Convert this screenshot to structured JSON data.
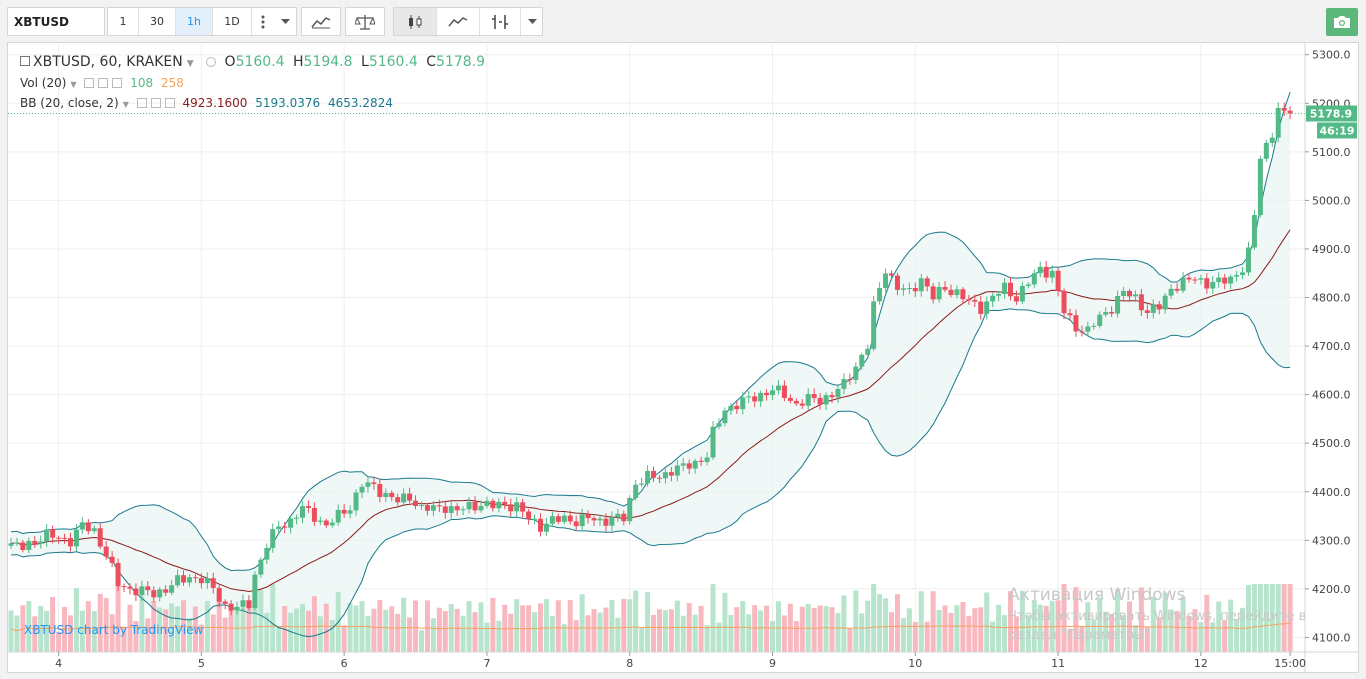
{
  "toolbar": {
    "symbol": "XBTUSD",
    "intervals": [
      "1",
      "30",
      "1h",
      "1D"
    ],
    "active_interval": "1h"
  },
  "legend": {
    "title": "XBTUSD, 60, KRAKEN",
    "o_label": "O",
    "o_value": "5160.4",
    "h_label": "H",
    "h_value": "5194.8",
    "l_label": "L",
    "l_value": "5160.4",
    "c_label": "C",
    "c_value": "5178.9",
    "vol_label": "Vol (20)",
    "vol_value": "108",
    "vol_ma_value": "258",
    "bb_label": "BB (20, close, 2)",
    "bb_basis": "4923.1600",
    "bb_upper": "5193.0376",
    "bb_lower": "4653.2824"
  },
  "price_tag": {
    "price": "5178.9",
    "countdown": "46:19"
  },
  "watermark": {
    "line1": "Активация Windows",
    "line2": "Чтобы активировать Windows, перейдите в",
    "line3": "раздел \"Параметры\"."
  },
  "attribution": "XBTUSD chart by TradingView",
  "colors": {
    "up": "#53b987",
    "down": "#eb4d5c",
    "band": "#1a7a8c",
    "basis": "#8b1a1a",
    "band_fill": "#e8f5f2",
    "vol_up": "#b7e4cd",
    "vol_down": "#f8b8bf",
    "vol_ma": "#f5a25d",
    "accent": "#2196f3"
  },
  "chart_data": {
    "type": "candlestick",
    "ylim": [
      4070,
      5320
    ],
    "y_ticks": [
      4100,
      4200,
      4300,
      4400,
      4500,
      4600,
      4700,
      4800,
      4900,
      5000,
      5100,
      5200,
      5300
    ],
    "y_tick_labels": [
      "4100.0",
      "4200.0",
      "4300.0",
      "4400.0",
      "4500.0",
      "4600.0",
      "4700.0",
      "4800.0",
      "4900.0",
      "5000.0",
      "5100.0",
      "5200.0",
      "5300.0"
    ],
    "x_ticks": [
      {
        "label": "4",
        "hour": 0
      },
      {
        "label": "5",
        "hour": 24
      },
      {
        "label": "6",
        "hour": 48
      },
      {
        "label": "7",
        "hour": 72
      },
      {
        "label": "8",
        "hour": 96
      },
      {
        "label": "9",
        "hour": 120
      },
      {
        "label": "10",
        "hour": 144
      },
      {
        "label": "11",
        "hour": 168
      },
      {
        "label": "12",
        "hour": 192
      },
      {
        "label": "15:00",
        "hour": 207
      }
    ],
    "x_range_hours": [
      -8.5,
      209.5
    ],
    "close_anchors": [
      [
        -8,
        4290
      ],
      [
        -6,
        4285
      ],
      [
        -4,
        4300
      ],
      [
        -2,
        4310
      ],
      [
        0,
        4305
      ],
      [
        2,
        4300
      ],
      [
        4,
        4330
      ],
      [
        6,
        4320
      ],
      [
        8,
        4270
      ],
      [
        10,
        4210
      ],
      [
        12,
        4200
      ],
      [
        14,
        4195
      ],
      [
        16,
        4190
      ],
      [
        18,
        4200
      ],
      [
        20,
        4215
      ],
      [
        22,
        4225
      ],
      [
        24,
        4220
      ],
      [
        26,
        4200
      ],
      [
        28,
        4165
      ],
      [
        30,
        4160
      ],
      [
        32,
        4170
      ],
      [
        33,
        4230
      ],
      [
        35,
        4290
      ],
      [
        37,
        4330
      ],
      [
        39,
        4340
      ],
      [
        41,
        4365
      ],
      [
        43,
        4350
      ],
      [
        45,
        4330
      ],
      [
        47,
        4350
      ],
      [
        49,
        4370
      ],
      [
        51,
        4415
      ],
      [
        53,
        4410
      ],
      [
        55,
        4395
      ],
      [
        57,
        4380
      ],
      [
        59,
        4390
      ],
      [
        61,
        4365
      ],
      [
        63,
        4365
      ],
      [
        65,
        4370
      ],
      [
        67,
        4360
      ],
      [
        69,
        4370
      ],
      [
        71,
        4375
      ],
      [
        73,
        4370
      ],
      [
        75,
        4375
      ],
      [
        77,
        4370
      ],
      [
        79,
        4345
      ],
      [
        81,
        4330
      ],
      [
        83,
        4340
      ],
      [
        85,
        4345
      ],
      [
        87,
        4340
      ],
      [
        89,
        4345
      ],
      [
        91,
        4340
      ],
      [
        93,
        4345
      ],
      [
        95,
        4345
      ],
      [
        97,
        4420
      ],
      [
        99,
        4430
      ],
      [
        101,
        4430
      ],
      [
        103,
        4445
      ],
      [
        105,
        4450
      ],
      [
        107,
        4460
      ],
      [
        109,
        4475
      ],
      [
        110,
        4520
      ],
      [
        112,
        4570
      ],
      [
        114,
        4580
      ],
      [
        116,
        4590
      ],
      [
        118,
        4600
      ],
      [
        120,
        4610
      ],
      [
        122,
        4600
      ],
      [
        124,
        4580
      ],
      [
        126,
        4590
      ],
      [
        128,
        4590
      ],
      [
        130,
        4600
      ],
      [
        132,
        4620
      ],
      [
        134,
        4660
      ],
      [
        136,
        4700
      ],
      [
        137,
        4780
      ],
      [
        139,
        4860
      ],
      [
        141,
        4820
      ],
      [
        143,
        4810
      ],
      [
        145,
        4840
      ],
      [
        147,
        4800
      ],
      [
        149,
        4820
      ],
      [
        151,
        4810
      ],
      [
        153,
        4790
      ],
      [
        155,
        4780
      ],
      [
        157,
        4800
      ],
      [
        159,
        4820
      ],
      [
        161,
        4800
      ],
      [
        163,
        4830
      ],
      [
        165,
        4860
      ],
      [
        167,
        4850
      ],
      [
        169,
        4770
      ],
      [
        171,
        4740
      ],
      [
        173,
        4730
      ],
      [
        175,
        4760
      ],
      [
        177,
        4780
      ],
      [
        179,
        4810
      ],
      [
        181,
        4800
      ],
      [
        183,
        4770
      ],
      [
        185,
        4780
      ],
      [
        187,
        4820
      ],
      [
        189,
        4830
      ],
      [
        191,
        4840
      ],
      [
        193,
        4830
      ],
      [
        195,
        4830
      ],
      [
        197,
        4840
      ],
      [
        199,
        4860
      ],
      [
        200,
        4890
      ],
      [
        201,
        4970
      ],
      [
        202,
        5090
      ],
      [
        204,
        5140
      ],
      [
        205,
        5185
      ],
      [
        206,
        5175
      ],
      [
        207,
        5179
      ]
    ],
    "bb_period": 20,
    "bb_mult": 2
  }
}
